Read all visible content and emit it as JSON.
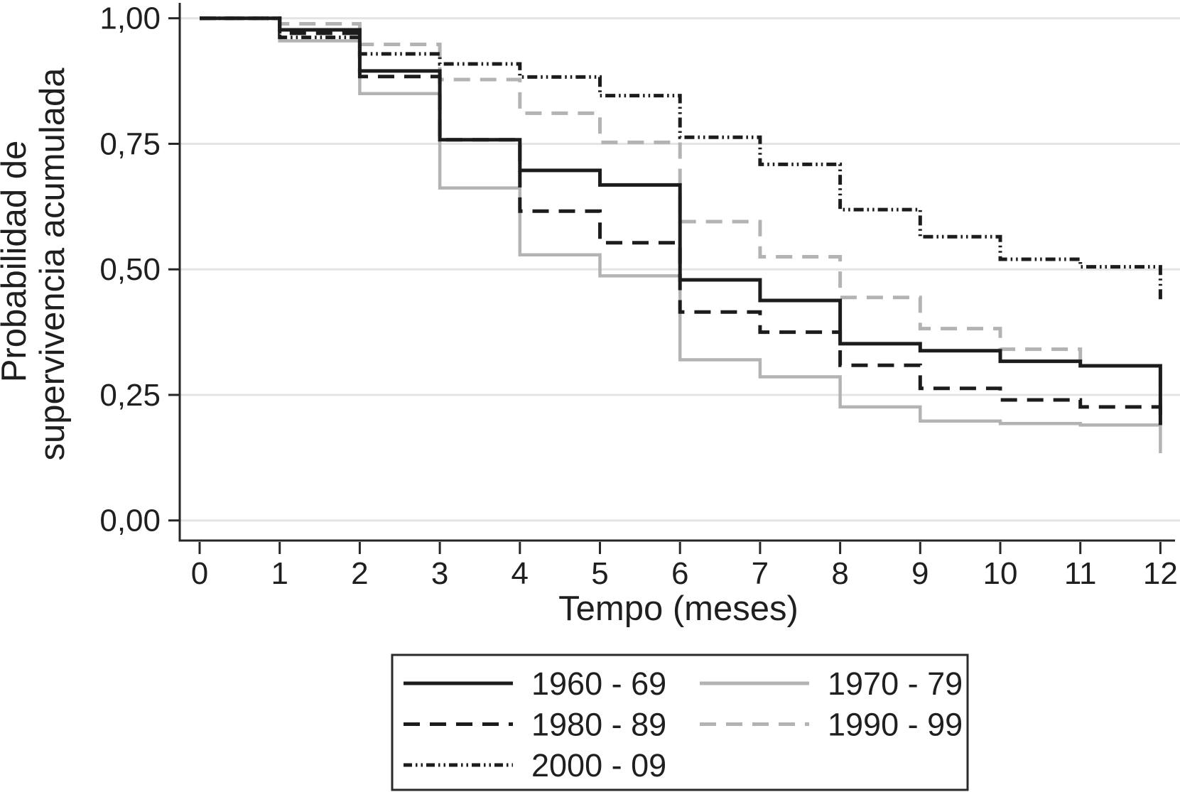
{
  "figure": {
    "ylabel_line1": "Probabilidad de",
    "ylabel_line2": "supervivencia acumulada",
    "xlabel": "Tempo (meses)"
  },
  "chart_data": {
    "type": "line",
    "subtype": "kaplan-meier-step-survival",
    "title": "",
    "xlabel": "Tempo (meses)",
    "ylabel": "Probabilidad de supervivencia acumulada",
    "xlim": [
      0,
      12
    ],
    "ylim": [
      0.0,
      1.0
    ],
    "grid": true,
    "gridline_color": "#e4e4e4",
    "axis_color": "#262626",
    "x_tick_values": [
      0,
      1,
      2,
      3,
      4,
      5,
      6,
      7,
      8,
      9,
      10,
      11,
      12
    ],
    "x_ticks": [
      "0",
      "1",
      "2",
      "3",
      "4",
      "5",
      "6",
      "7",
      "8",
      "9",
      "10",
      "11",
      "12"
    ],
    "y_tick_values": [
      0.0,
      0.25,
      0.5,
      0.75,
      1.0
    ],
    "y_ticks": [
      "0,00",
      "0,25",
      "0,50",
      "0,75",
      "1,00"
    ],
    "months": [
      0,
      1,
      2,
      3,
      4,
      5,
      6,
      7,
      8,
      9,
      10,
      11
    ],
    "series": [
      {
        "name": "1960 - 69",
        "color": "#1c1c1c",
        "dash": "solid",
        "values": [
          1.0,
          0.977,
          0.895,
          0.758,
          0.697,
          0.668,
          0.479,
          0.438,
          0.352,
          0.338,
          0.317,
          0.308
        ],
        "final_at_12": 0.19
      },
      {
        "name": "1970 - 79",
        "color": "#b3b3b3",
        "dash": "solid",
        "values": [
          1.0,
          0.955,
          0.85,
          0.662,
          0.529,
          0.487,
          0.32,
          0.286,
          0.226,
          0.198,
          0.193,
          0.19
        ],
        "final_at_12": 0.134
      },
      {
        "name": "1980 - 89",
        "color": "#1c1c1c",
        "dash": "dashed",
        "values": [
          1.0,
          0.97,
          0.884,
          0.758,
          0.616,
          0.553,
          0.415,
          0.375,
          0.309,
          0.263,
          0.24,
          0.226
        ],
        "final_at_12": 0.19
      },
      {
        "name": "1990 - 99",
        "color": "#b3b3b3",
        "dash": "dashed",
        "values": [
          1.0,
          0.989,
          0.948,
          0.878,
          0.811,
          0.753,
          0.595,
          0.525,
          0.444,
          0.382,
          0.341,
          0.308
        ],
        "final_at_12": 0.19
      },
      {
        "name": "2000 - 09",
        "color": "#1c1c1c",
        "dash": "dash-dot-dot",
        "values": [
          1.0,
          0.962,
          0.929,
          0.909,
          0.883,
          0.846,
          0.763,
          0.709,
          0.619,
          0.565,
          0.52,
          0.505
        ],
        "final_at_12": 0.435
      }
    ],
    "legend": {
      "position": "bottom-center",
      "columns": 2,
      "entries": [
        "1960 - 69",
        "1970 - 79",
        "1980 - 89",
        "1990 - 99",
        "2000 - 09"
      ]
    }
  }
}
